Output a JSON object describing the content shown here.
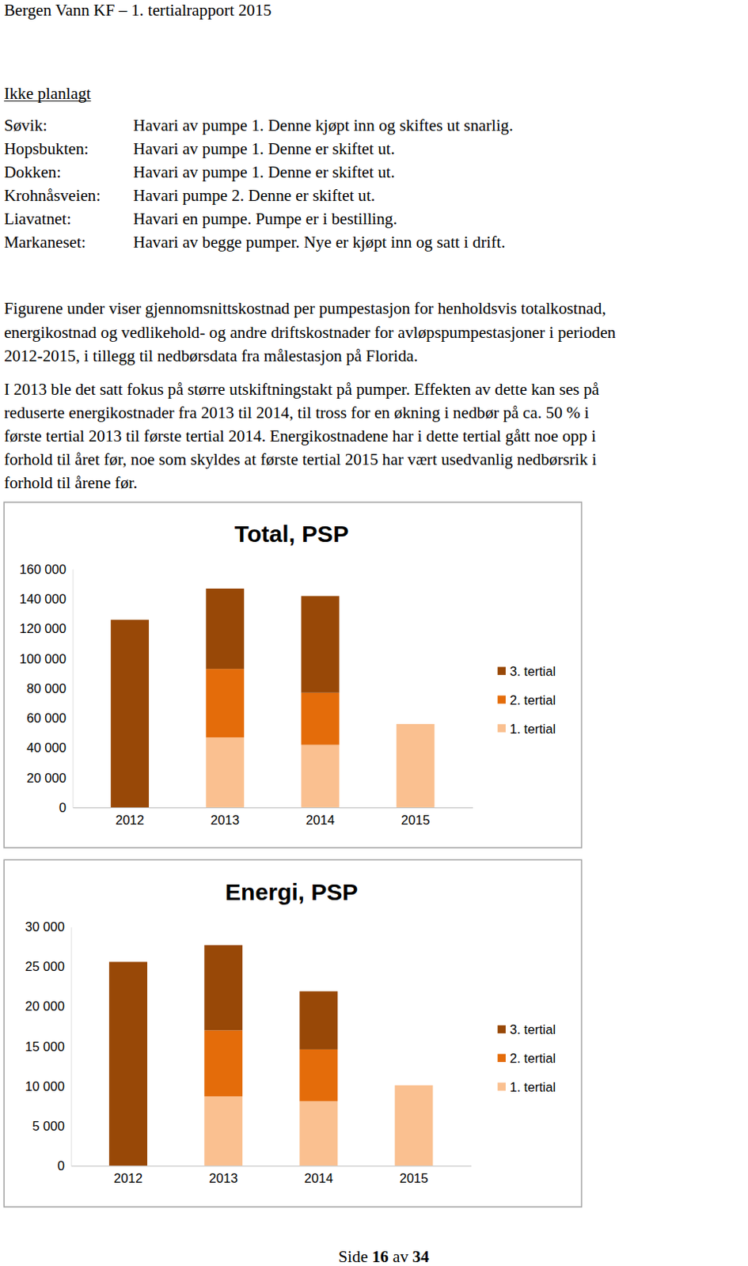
{
  "header": {
    "title": "Bergen Vann KF – 1. tertialrapport 2015"
  },
  "section": {
    "heading": "Ikke planlagt",
    "items": [
      {
        "label": "Søvik:",
        "text": "Havari av pumpe 1. Denne kjøpt inn og skiftes ut snarlig."
      },
      {
        "label": "Hopsbukten:",
        "text": "Havari av pumpe 1. Denne er skiftet ut."
      },
      {
        "label": "Dokken:",
        "text": "Havari av pumpe 1. Denne er skiftet ut."
      },
      {
        "label": "Krohnåsveien:",
        "text": "Havari pumpe 2. Denne er skiftet ut."
      },
      {
        "label": "Liavatnet:",
        "text": "Havari en pumpe. Pumpe er i bestilling."
      },
      {
        "label": "Markaneset:",
        "text": "Havari av begge pumper. Nye er kjøpt inn og satt i drift."
      }
    ]
  },
  "paragraphs": [
    [
      "Figurene under viser gjennomsnittskostnad per pumpestasjon for henholdsvis totalkostnad,",
      "energikostnad og vedlikehold- og andre driftskostnader for avløpspumpestasjoner i perioden",
      "2012-2015, i tillegg til nedbørsdata fra målestasjon på Florida."
    ],
    [
      "I 2013 ble det satt fokus på større utskiftningstakt på pumper. Effekten av dette kan ses på",
      "reduserte energikostnader fra 2013 til 2014, til tross for en økning i nedbør på ca. 50 % i",
      "første tertial 2013 til første tertial 2014. Energikostnadene har i dette tertial gått noe opp i",
      "forhold til året før, noe som skyldes at første tertial 2015 har vært usedvanlig nedbørsrik i",
      "forhold til årene før."
    ]
  ],
  "chart_data": [
    {
      "type": "bar",
      "title": "Total, PSP",
      "stacked": true,
      "legend": "right",
      "categories": [
        "2012",
        "2013",
        "2014",
        "2015"
      ],
      "series": [
        {
          "name": "1. tertial",
          "color": "#fac090",
          "values": [
            null,
            47000,
            42000,
            56000
          ]
        },
        {
          "name": "2. tertial",
          "color": "#e46c0a",
          "values": [
            null,
            46000,
            35000,
            null
          ]
        },
        {
          "name": "3. tertial",
          "color": "#984807",
          "values": [
            126000,
            54000,
            65000,
            null
          ]
        }
      ],
      "ylim": [
        0,
        160000
      ],
      "yticks": [
        0,
        {
          "value": 20000,
          "label": "20 000"
        },
        {
          "value": 40000,
          "label": "40 000"
        },
        {
          "value": 60000,
          "label": "60 000"
        },
        {
          "value": 80000,
          "label": "80 000"
        },
        {
          "value": 100000,
          "label": "100 000"
        },
        {
          "value": 120000,
          "label": "120 000"
        },
        {
          "value": 140000,
          "label": "140 000"
        },
        {
          "value": 160000,
          "label": "160 000"
        }
      ]
    },
    {
      "type": "bar",
      "title": "Energi, PSP",
      "stacked": true,
      "legend": "right",
      "categories": [
        "2012",
        "2013",
        "2014",
        "2015"
      ],
      "series": [
        {
          "name": "1. tertial",
          "color": "#fac090",
          "values": [
            null,
            8700,
            8100,
            10100
          ]
        },
        {
          "name": "2. tertial",
          "color": "#e46c0a",
          "values": [
            null,
            8300,
            6500,
            null
          ]
        },
        {
          "name": "3. tertial",
          "color": "#984807",
          "values": [
            25600,
            10700,
            7300,
            null
          ]
        }
      ],
      "ylim": [
        0,
        30000
      ],
      "yticks": [
        0,
        {
          "value": 5000,
          "label": "5 000"
        },
        {
          "value": 10000,
          "label": "10 000"
        },
        {
          "value": 15000,
          "label": "15 000"
        },
        {
          "value": 20000,
          "label": "20 000"
        },
        {
          "value": 25000,
          "label": "25 000"
        },
        {
          "value": 30000,
          "label": "30 000"
        }
      ]
    }
  ],
  "footer": {
    "prefix": "Side",
    "page": 16,
    "separator": "av",
    "total": 34
  }
}
